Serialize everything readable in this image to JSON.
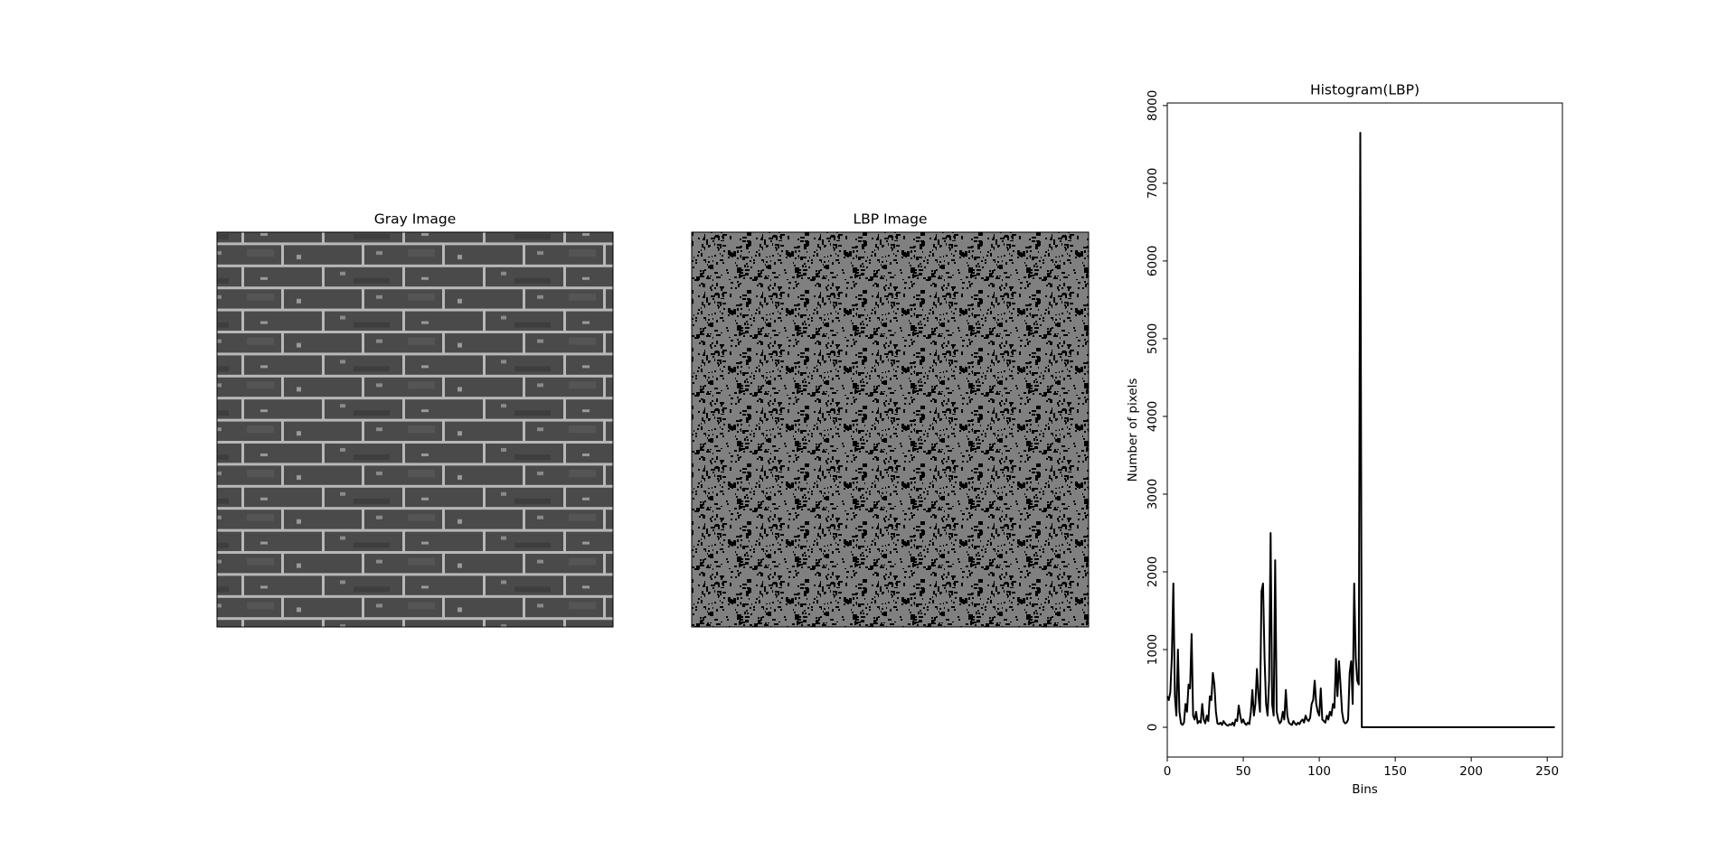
{
  "chart_data": [
    {
      "type": "image",
      "title": "Gray Image"
    },
    {
      "type": "image",
      "title": "LBP Image"
    },
    {
      "type": "line",
      "title": "Histogram(LBP)",
      "xlabel": "Bins",
      "ylabel": "Number of pixels",
      "color": "#000000",
      "x": [
        0,
        1,
        2,
        3,
        4,
        5,
        6,
        7,
        8,
        9,
        10,
        11,
        12,
        13,
        14,
        15,
        16,
        17,
        18,
        19,
        20,
        21,
        22,
        23,
        24,
        25,
        26,
        27,
        28,
        29,
        30,
        31,
        32,
        33,
        34,
        35,
        36,
        37,
        38,
        39,
        40,
        41,
        42,
        43,
        44,
        45,
        46,
        47,
        48,
        49,
        50,
        51,
        52,
        53,
        54,
        55,
        56,
        57,
        58,
        59,
        60,
        61,
        62,
        63,
        64,
        65,
        66,
        67,
        68,
        69,
        70,
        71,
        72,
        73,
        74,
        75,
        76,
        77,
        78,
        79,
        80,
        81,
        82,
        83,
        84,
        85,
        86,
        87,
        88,
        89,
        90,
        91,
        92,
        93,
        94,
        95,
        96,
        97,
        98,
        99,
        100,
        101,
        102,
        103,
        104,
        105,
        106,
        107,
        108,
        109,
        110,
        111,
        112,
        113,
        114,
        115,
        116,
        117,
        118,
        119,
        120,
        121,
        122,
        123,
        124,
        125,
        126,
        127,
        128,
        129,
        130,
        131,
        132,
        133,
        134,
        135,
        136,
        137,
        138,
        139,
        140,
        141,
        142,
        143,
        144,
        145,
        146,
        147,
        148,
        149,
        150,
        151,
        152,
        153,
        154,
        155,
        156,
        157,
        158,
        159,
        160,
        161,
        162,
        163,
        164,
        165,
        166,
        167,
        168,
        169,
        170,
        171,
        172,
        173,
        174,
        175,
        176,
        177,
        178,
        179,
        180,
        181,
        182,
        183,
        184,
        185,
        186,
        187,
        188,
        189,
        190,
        191,
        192,
        193,
        194,
        195,
        196,
        197,
        198,
        199,
        200,
        201,
        202,
        203,
        204,
        205,
        206,
        207,
        208,
        209,
        210,
        211,
        212,
        213,
        214,
        215,
        216,
        217,
        218,
        219,
        220,
        221,
        222,
        223,
        224,
        225,
        226,
        227,
        228,
        229,
        230,
        231,
        232,
        233,
        234,
        235,
        236,
        237,
        238,
        239,
        240,
        241,
        242,
        243,
        244,
        245,
        246,
        247,
        248,
        249,
        250,
        251,
        252,
        253,
        254,
        255
      ],
      "values": [
        400,
        350,
        450,
        900,
        1850,
        400,
        150,
        1000,
        200,
        50,
        30,
        60,
        300,
        200,
        550,
        500,
        1200,
        150,
        100,
        200,
        50,
        80,
        60,
        300,
        100,
        50,
        150,
        80,
        400,
        350,
        700,
        550,
        200,
        50,
        40,
        60,
        30,
        80,
        50,
        30,
        20,
        40,
        30,
        60,
        20,
        100,
        80,
        280,
        150,
        60,
        100,
        50,
        30,
        60,
        40,
        200,
        480,
        150,
        300,
        750,
        400,
        200,
        1750,
        1850,
        900,
        300,
        150,
        600,
        2500,
        300,
        150,
        2150,
        200,
        100,
        50,
        80,
        200,
        100,
        480,
        150,
        60,
        40,
        30,
        80,
        50,
        30,
        60,
        40,
        80,
        100,
        60,
        150,
        100,
        80,
        120,
        300,
        350,
        600,
        300,
        200,
        150,
        500,
        100,
        80,
        60,
        150,
        100,
        200,
        150,
        300,
        250,
        880,
        400,
        850,
        540,
        200,
        80,
        50,
        60,
        100,
        700,
        850,
        300,
        1850,
        900,
        600,
        550,
        7650,
        0,
        0,
        0,
        0,
        0,
        0,
        0,
        0,
        0,
        0,
        0,
        0,
        0,
        0,
        0,
        0,
        0,
        0,
        0,
        0,
        0,
        0,
        0,
        0,
        0,
        0,
        0,
        0,
        0,
        0,
        0,
        0,
        0,
        0,
        0,
        0,
        0,
        0,
        0,
        0,
        0,
        0,
        0,
        0,
        0,
        0,
        0,
        0,
        0,
        0,
        0,
        0,
        0,
        0,
        0,
        0,
        0,
        0,
        0,
        0,
        0,
        0,
        0,
        0,
        0,
        0,
        0,
        0,
        0,
        0,
        0,
        0,
        0,
        0,
        0,
        0,
        0,
        0,
        0,
        0,
        0,
        0,
        0,
        0,
        0,
        0,
        0,
        0,
        0,
        0,
        0,
        0,
        0,
        0,
        0,
        0,
        0,
        0,
        0,
        0,
        0,
        0,
        0,
        0,
        0,
        0,
        0,
        0,
        0,
        0,
        0,
        0,
        0,
        0,
        0,
        0,
        0,
        0,
        0,
        0,
        0,
        0,
        0,
        0,
        0,
        0,
        0,
        0
      ],
      "xlim": [
        0,
        260
      ],
      "ylim": [
        -383,
        8033
      ],
      "xticks": [
        0,
        50,
        100,
        150,
        200,
        250
      ],
      "yticks": [
        0,
        1000,
        2000,
        3000,
        4000,
        5000,
        6000,
        7000,
        8000
      ]
    }
  ]
}
